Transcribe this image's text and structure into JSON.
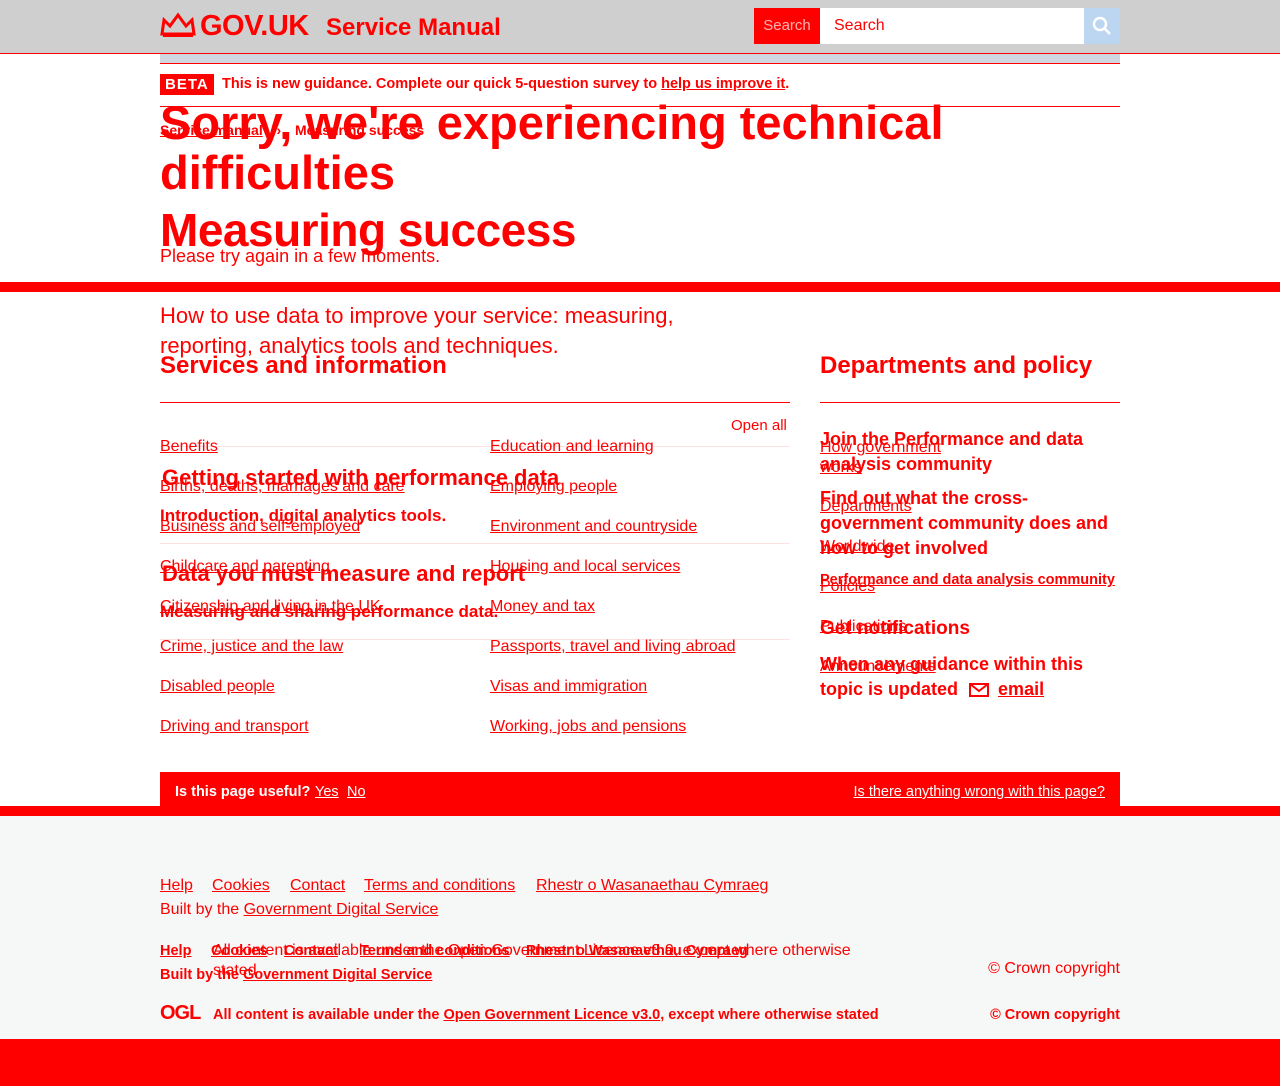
{
  "header": {
    "logo_text": "GOV.UK",
    "service_name": "Service Manual",
    "search_label": "Search",
    "search_placeholder": "Search"
  },
  "beta": {
    "tag": "BETA",
    "text": "This is new guidance. Complete our quick 5-question survey to",
    "link": "help us improve it",
    "end": "."
  },
  "breadcrumb": [
    "Service manual",
    "Measuring success"
  ],
  "error": {
    "title": "Sorry, we're experiencing technical difficulties",
    "sub": "Please try again in a few moments."
  },
  "page": {
    "title": "Measuring success",
    "lede": "How to use data to improve your service: measuring, reporting, analytics tools and techniques."
  },
  "services": {
    "title": "Services and information",
    "open_all": "Open all",
    "left": [
      "Benefits",
      "Births, deaths, marriages and care",
      "Business and self-employed",
      "Childcare and parenting",
      "Citizenship and living in the UK",
      "Crime, justice and the law",
      "Disabled people",
      "Driving and transport"
    ],
    "right": [
      "Education and learning",
      "Employing people",
      "Environment and countryside",
      "Housing and local services",
      "Money and tax",
      "Passports, travel and living abroad",
      "Visas and immigration",
      "Working, jobs and pensions"
    ]
  },
  "sections": [
    {
      "title": "Getting started with performance data",
      "desc": "Introduction, digital analytics tools."
    },
    {
      "title": "Data you must measure and report",
      "desc": "Measuring and sharing performance data."
    }
  ],
  "departments": {
    "title": "Departments and policy",
    "links": [
      "How government works",
      "Departments",
      "Worldwide",
      "Policies",
      "Publications",
      "Announcements"
    ]
  },
  "community": {
    "title": "Join the Performance and data analysis community",
    "desc": "Find out what the cross-government community does and how to get involved",
    "link": "Performance and data analysis community"
  },
  "notifications": {
    "title": "Get notifications",
    "desc": "When any guidance within this topic is updated",
    "link": "email"
  },
  "feedback": {
    "question": "Is this page useful?",
    "yes": "Yes",
    "no": "No",
    "wrong": "Is there anything wrong with this page?"
  },
  "footer": {
    "links": [
      "Help",
      "Cookies",
      "Contact",
      "Terms and conditions",
      "Rhestr o Wasanaethau Cymraeg"
    ],
    "built_by": "Built by the",
    "built_by_link": "Government Digital Service",
    "licence_text": "All content is available under the Open Government Licence v3.0, except where otherwise stated",
    "copyright": "© Crown copyright",
    "links_b": [
      "Help",
      "Cookies",
      "Contact",
      "Terms and conditions",
      "Rhestr o Wasanaethau Cymraeg"
    ],
    "ogl": "OGL",
    "licence_pre": "All content is available under the",
    "licence_link": "Open Government Licence v3.0",
    "licence_post": ", except where otherwise stated"
  }
}
